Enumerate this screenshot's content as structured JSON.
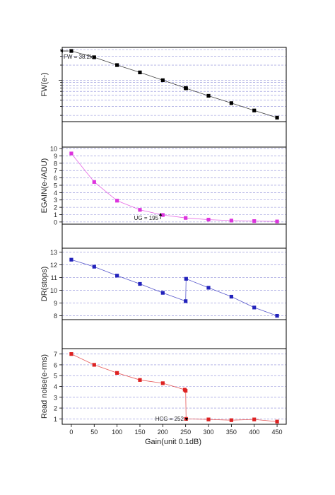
{
  "chart_data": [
    {
      "type": "line",
      "ylabel": "FW(e-)",
      "yscale": "log",
      "x": [
        0,
        50,
        100,
        150,
        200,
        250,
        251,
        300,
        350,
        400,
        450
      ],
      "y": [
        38200,
        28600,
        20000,
        14300,
        10000,
        7000,
        6900,
        4900,
        3500,
        2500,
        1800
      ],
      "color": "#000000",
      "ylim": [
        1500,
        45000
      ],
      "annotation": "FW = 38.2k",
      "grid": true
    },
    {
      "type": "line",
      "ylabel": "EGAIN(e-/ADU)",
      "x": [
        0,
        50,
        100,
        150,
        200,
        250,
        300,
        350,
        400,
        450
      ],
      "y": [
        9.33,
        5.45,
        2.9,
        1.65,
        0.95,
        0.55,
        0.32,
        0.19,
        0.12,
        0.07
      ],
      "color": "#dd33dd",
      "ylim": [
        -0.3,
        10.2
      ],
      "yticks": [
        0,
        1,
        2,
        3,
        4,
        5,
        6,
        7,
        8,
        9,
        10
      ],
      "annotation": "UG = 195",
      "grid": true
    },
    {
      "type": "line",
      "ylabel": "DR(stops)",
      "x": [
        0,
        50,
        100,
        150,
        200,
        250,
        251,
        300,
        350,
        400,
        450
      ],
      "y": [
        12.4,
        11.85,
        11.15,
        10.5,
        9.8,
        9.15,
        10.9,
        10.2,
        9.5,
        8.65,
        8.0
      ],
      "color": "#2222bb",
      "ylim": [
        7.7,
        13.3
      ],
      "yticks": [
        8,
        9,
        10,
        11,
        12,
        13
      ],
      "grid": true
    },
    {
      "type": "line",
      "ylabel": "Read noise(e-rms)",
      "xlabel": "Gain(unit 0.1dB)",
      "x": [
        0,
        50,
        100,
        150,
        200,
        248,
        250,
        251,
        300,
        350,
        400,
        450
      ],
      "y": [
        7.0,
        6.0,
        5.25,
        4.6,
        4.3,
        3.7,
        3.6,
        1.0,
        0.95,
        0.88,
        0.95,
        0.75
      ],
      "color": "#dd2222",
      "ylim": [
        0.5,
        7.5
      ],
      "yticks": [
        1,
        2,
        3,
        4,
        5,
        6,
        7
      ],
      "annotation": "HCG = 252",
      "grid": true
    }
  ],
  "x_axis": {
    "label": "Gain(unit 0.1dB)",
    "ticks": [
      "0",
      "50",
      "100",
      "150",
      "200",
      "250",
      "300",
      "350",
      "400",
      "450"
    ],
    "range": [
      -20,
      470
    ]
  }
}
